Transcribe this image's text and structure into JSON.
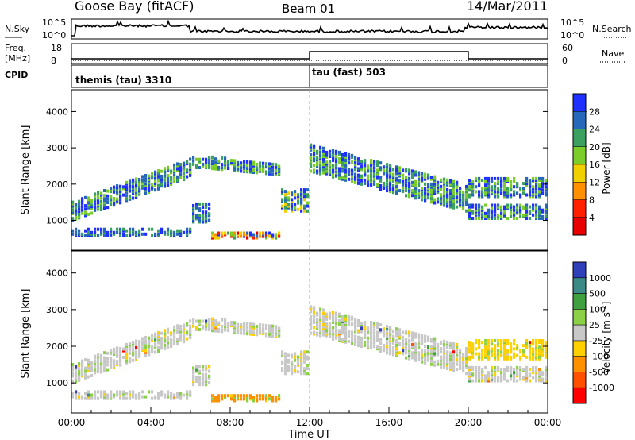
{
  "header": {
    "station": "Goose Bay (fitACF)",
    "beam": "Beam 01",
    "date": "14/Mar/2011"
  },
  "panels": {
    "nsky": {
      "left_label": "N.Sky",
      "right_label": "N.Search",
      "left_ticks": [
        "10^5",
        "10^0"
      ],
      "right_ticks": [
        "10^5",
        "10^0"
      ]
    },
    "freq": {
      "left_label_1": "Freq.",
      "left_label_2": "[MHz]",
      "right_label": "Nave",
      "left_ticks": [
        "18",
        "8"
      ],
      "right_ticks": [
        "60",
        "0"
      ],
      "segments": [
        {
          "x": [
            0,
            12
          ],
          "freq": 10
        },
        {
          "x": [
            12,
            20
          ],
          "freq": 14.5
        },
        {
          "x": [
            20,
            24
          ],
          "freq": 10
        }
      ]
    },
    "cpid": {
      "label": "CPID",
      "programs": [
        {
          "start": 0,
          "text": "themis (tau) 3310"
        },
        {
          "start": 12,
          "text": "tau (fast) 503"
        }
      ]
    }
  },
  "chart_data": [
    {
      "type": "heatmap",
      "ylabel": "Slant Range [km]",
      "ylim": [
        180,
        4600
      ],
      "yticks": [
        1000,
        2000,
        3000,
        4000
      ],
      "colorbar_label": "Power [dB]",
      "colorbar_ticks": [
        "28",
        "24",
        "20",
        "16",
        "12",
        "8",
        "4"
      ],
      "colors": [
        "#2030ff",
        "#2868b8",
        "#3ca060",
        "#7ccc2a",
        "#f0d000",
        "#ff9000",
        "#ff2000",
        "#e80000"
      ]
    },
    {
      "type": "heatmap",
      "xlabel": "Time UT",
      "ylabel": "Slant Range [km]",
      "ylim": [
        180,
        4600
      ],
      "yticks": [
        1000,
        2000,
        3000,
        4000
      ],
      "xticks": [
        "00:00",
        "04:00",
        "08:00",
        "12:00",
        "16:00",
        "20:00",
        "00:00"
      ],
      "colorbar_label": "Velocity [m s",
      "colorbar_label_exp": "-1",
      "colorbar_label_end": "]",
      "colorbar_ticks": [
        "1000",
        "500",
        "100",
        "25",
        "-25",
        "-100",
        "-500",
        "-1000"
      ],
      "colors": [
        "#3040b8",
        "#3c8a86",
        "#3fa040",
        "#8cd048",
        "#c8c8c8",
        "#ffd000",
        "#ff9000",
        "#ff5000",
        "#ff0000"
      ]
    }
  ]
}
